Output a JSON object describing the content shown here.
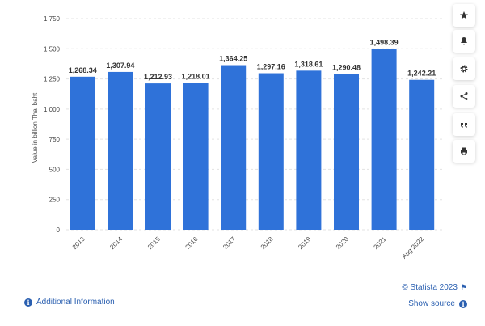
{
  "chart_data": {
    "type": "bar",
    "categories": [
      "2013",
      "2014",
      "2015",
      "2016",
      "2017",
      "2018",
      "2019",
      "2020",
      "2021",
      "Aug 2022"
    ],
    "values": [
      1268.34,
      1307.94,
      1212.93,
      1218.01,
      1364.25,
      1297.16,
      1318.61,
      1290.48,
      1498.39,
      1242.21
    ],
    "value_labels": [
      "1,268.34",
      "1,307.94",
      "1,212.93",
      "1,218.01",
      "1,364.25",
      "1,297.16",
      "1,318.61",
      "1,290.48",
      "1,498.39",
      "1,242.21"
    ],
    "ylabel": "Value in billion Thai baht",
    "ylim": [
      0,
      1750
    ],
    "yticks": [
      0,
      250,
      500,
      750,
      1000,
      1250,
      1500,
      1750
    ],
    "ytick_labels": [
      "0",
      "250",
      "500",
      "750",
      "1,000",
      "1,250",
      "1,500",
      "1,750"
    ],
    "bar_color": "#2f72d9",
    "grid": true
  },
  "sidebar": {
    "buttons": [
      {
        "name": "favorite-button",
        "icon": "star-icon"
      },
      {
        "name": "notification-button",
        "icon": "bell-icon"
      },
      {
        "name": "settings-button",
        "icon": "gear-icon"
      },
      {
        "name": "share-button",
        "icon": "share-icon"
      },
      {
        "name": "cite-button",
        "icon": "quote-icon"
      },
      {
        "name": "print-button",
        "icon": "printer-icon"
      }
    ]
  },
  "footer": {
    "additional_info": "Additional Information",
    "copyright": "© Statista 2023",
    "show_source": "Show source"
  }
}
